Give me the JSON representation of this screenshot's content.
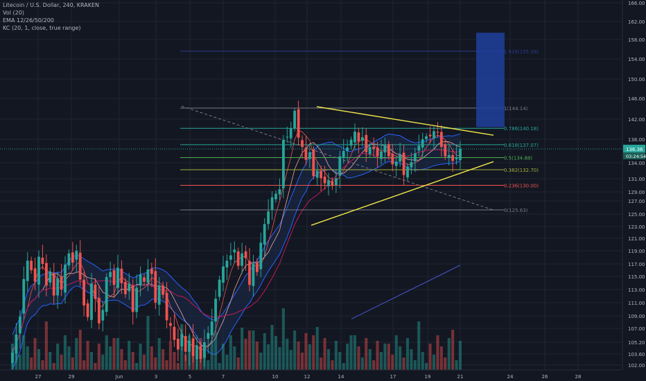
{
  "legend": {
    "title": "Litecoin / U.S. Dollar, 240, KRAKEN",
    "volume": "Vol (20)",
    "ema": "EMA 12/26/50/200",
    "kc": "KC (20, 1, close, true range)"
  },
  "colors": {
    "background": "#131722",
    "grid": "#1f2433",
    "axis_text": "#b2b5be",
    "up": "#26a69a",
    "down": "#ef5350",
    "triangle": "#f0e64a",
    "fib_box": "#1e3f9c",
    "price_tag": "#26a69a",
    "kc_fill": "#1c2b4a"
  },
  "chart_data": {
    "type": "candlestick",
    "ylim": [
      100.5,
      166.0
    ],
    "y_ticks": [
      "166.00",
      "162.00",
      "158.00",
      "154.00",
      "150.00",
      "146.00",
      "142.00",
      "138.00",
      "134.00",
      "131.00",
      "129.00",
      "127.00",
      "125.00",
      "123.00",
      "121.00",
      "119.00",
      "117.00",
      "115.00",
      "113.00",
      "111.00",
      "109.00",
      "107.00",
      "105.20",
      "103.60",
      "102.00"
    ],
    "x_ticks": [
      "27",
      "29",
      "Jun",
      "3",
      "5",
      "7",
      "10",
      "12",
      "14",
      "17",
      "19",
      "21",
      "24",
      "26",
      "28"
    ],
    "current_price": "136.36",
    "countdown": "03:24:54",
    "fibonacci": [
      {
        "label": "1.618(155.59)",
        "price": 155.59,
        "color": "#2b3c8e"
      },
      {
        "label": "1(144.14)",
        "price": 144.14,
        "color": "#787b86"
      },
      {
        "label": "0.786(140.18)",
        "price": 140.18,
        "color": "#26a69a"
      },
      {
        "label": "0.618(137.07)",
        "price": 137.07,
        "color": "#26a69a"
      },
      {
        "label": "0.5(134.88)",
        "price": 134.88,
        "color": "#4caf50"
      },
      {
        "label": "0.382(132.70)",
        "price": 132.7,
        "color": "#a5b23c"
      },
      {
        "label": "0.236(130.00)",
        "price": 130.0,
        "color": "#ef5350"
      },
      {
        "label": "0(125.63)",
        "price": 125.63,
        "color": "#787b86"
      }
    ],
    "triangle": {
      "upper": [
        [
          "12",
          144.4
        ],
        [
          "23",
          138.8
        ]
      ],
      "lower": [
        [
          "12",
          123.2
        ],
        [
          "23",
          134.2
        ]
      ]
    },
    "dashed_trend": [
      [
        "4",
        144.5
      ],
      [
        "23",
        125.6
      ]
    ],
    "ema200": [
      [
        "17",
        108.5
      ],
      [
        "21",
        116.8
      ]
    ],
    "closes": [
      103.8,
      106.2,
      108.9,
      114.6,
      117.5,
      116.0,
      114.2,
      118.1,
      117.0,
      113.6,
      115.8,
      112.1,
      114.7,
      113.0,
      116.9,
      118.6,
      117.2,
      119.0,
      114.5,
      110.6,
      108.8,
      113.9,
      111.6,
      107.8,
      109.9,
      114.9,
      115.7,
      113.7,
      116.4,
      114.0,
      112.3,
      113.9,
      109.6,
      113.3,
      115.3,
      114.2,
      116.1,
      115.4,
      111.0,
      113.6,
      112.2,
      108.3,
      107.4,
      105.5,
      104.2,
      106.3,
      103.9,
      105.4,
      103.3,
      104.8,
      102.9,
      105.2,
      106.4,
      108.1,
      111.6,
      114.5,
      116.6,
      117.5,
      118.3,
      119.2,
      116.7,
      118.6,
      117.9,
      113.7,
      117.1,
      115.7,
      120.3,
      123.4,
      125.4,
      127.8,
      128.6,
      129.4,
      137.9,
      138.5,
      140.2,
      143.6,
      138.3,
      136.7,
      134.5,
      135.8,
      131.5,
      132.5,
      131.1,
      130.3,
      130.8,
      129.9,
      131.1,
      135.1,
      136.0,
      136.6,
      137.9,
      139.5,
      137.6,
      138.4,
      135.8,
      136.7,
      136.3,
      135.1,
      135.9,
      137.0,
      135.1,
      133.7,
      134.2,
      135.4,
      131.7,
      133.3,
      134.1,
      135.6,
      136.9,
      138.0,
      138.6,
      138.6,
      139.6,
      139.3,
      136.7,
      135.1,
      135.3,
      134.3,
      134.9,
      136.4
    ],
    "volume_bars": 118
  }
}
